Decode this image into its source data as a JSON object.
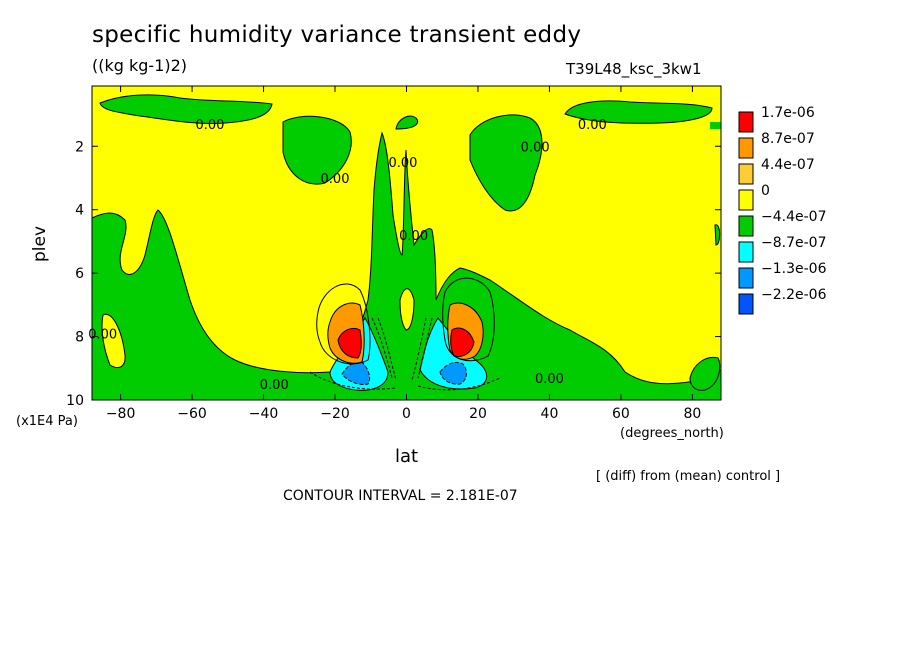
{
  "header": {
    "title": "specific humidity variance transient eddy",
    "units": "((kg kg-1)2)",
    "run_id": "T39L48_ksc_3kw1"
  },
  "footer": {
    "diff_note": "[ (diff) from (mean) control ]",
    "contour_interval": "CONTOUR INTERVAL = 2.181E-07"
  },
  "colors": {
    "yellow": "#ffff00",
    "green": "#00cc00",
    "cyan": "#00ffff",
    "light_blue": "#0099ff",
    "blue": "#0055ff",
    "orange": "#ff9900",
    "red": "#ff0000"
  },
  "chart_data": {
    "type": "heatmap",
    "subtype": "filled contour",
    "title": "specific humidity variance transient eddy",
    "xlabel": "lat",
    "ylabel": "plev",
    "x_units": "(degrees_north)",
    "y_units": "(x1E4 Pa)",
    "xlim": [
      -88,
      88
    ],
    "ylim": [
      10,
      0.1
    ],
    "y_inverted": true,
    "x_ticks": [
      -80,
      -60,
      -40,
      -20,
      0,
      20,
      40,
      60,
      80
    ],
    "y_ticks": [
      2,
      4,
      6,
      8,
      10
    ],
    "colorbar": {
      "labels": [
        "1.7e-06",
        "8.7e-07",
        "4.4e-07",
        "0",
        "−4.4e-07",
        "−8.7e-07",
        "−1.3e-06",
        "−2.2e-06"
      ],
      "colors": [
        "#ff0000",
        "#ff9900",
        "#ffcc33",
        "#ffff00",
        "#00cc00",
        "#00ffff",
        "#0099ff",
        "#0055ff"
      ]
    },
    "contour_labels": [
      {
        "text": "0.00",
        "lat": -55,
        "plev": 1.3
      },
      {
        "text": "0.00",
        "lat": 52,
        "plev": 1.3
      },
      {
        "text": "0.00",
        "lat": -20,
        "plev": 3.0
      },
      {
        "text": "0.00",
        "lat": -1,
        "plev": 2.5
      },
      {
        "text": "0.00",
        "lat": 36,
        "plev": 2.0
      },
      {
        "text": "0.00",
        "lat": 2,
        "plev": 4.8
      },
      {
        "text": "0.00",
        "lat": -85,
        "plev": 7.9
      },
      {
        "text": "0.00",
        "lat": -37,
        "plev": 9.5
      },
      {
        "text": "0.00",
        "lat": 40,
        "plev": 9.3
      }
    ],
    "extrema": [
      {
        "kind": "max",
        "lat": -15,
        "plev": 8.3,
        "level": "1.7e-06"
      },
      {
        "kind": "max",
        "lat": 15,
        "plev": 8.3,
        "level": "1.7e-06"
      },
      {
        "kind": "min",
        "lat": -13,
        "plev": 9.2,
        "level": "-1.3e-06"
      },
      {
        "kind": "min",
        "lat": 13,
        "plev": 9.3,
        "level": "-1.3e-06"
      }
    ]
  }
}
